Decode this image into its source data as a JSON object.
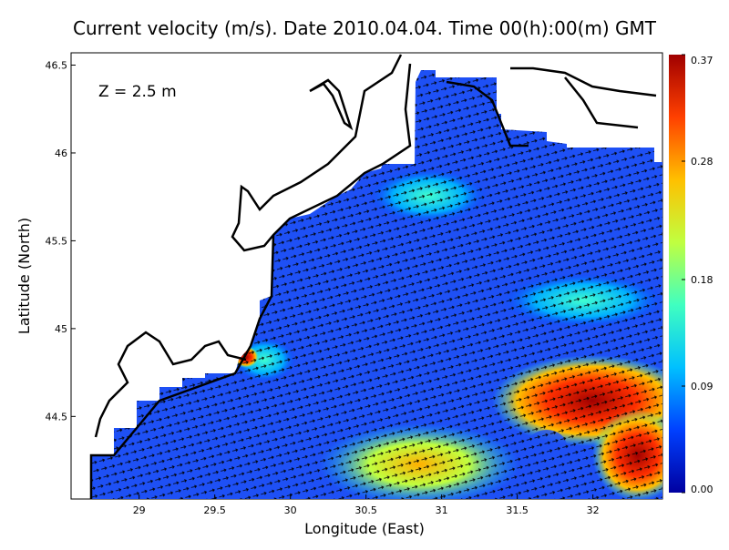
{
  "chart_data": {
    "type": "quiver",
    "title": "Current velocity (m/s). Date 2010.04.04. Time 00(h):00(m) GMT",
    "x_label": "Longitude (East)",
    "y_label": "Latitude (North)",
    "annotation": "Z = 2.5 m",
    "xlim": [
      28.55,
      32.46
    ],
    "ylim": [
      44.03,
      46.57
    ],
    "xticks": [
      29,
      29.5,
      30,
      30.5,
      31,
      31.5,
      32
    ],
    "yticks": [
      44.5,
      45,
      45.5,
      46,
      46.5
    ],
    "colorbar": {
      "lim": [
        0,
        0.37
      ],
      "ticks": [
        {
          "value": 0,
          "label": "0.00"
        },
        {
          "value": 0.09,
          "label": "0.09"
        },
        {
          "value": 0.18,
          "label": "0.18"
        },
        {
          "value": 0.28,
          "label": "0.28"
        },
        {
          "value": 0.37,
          "label": "0.37"
        }
      ],
      "colors": [
        "#0000a0",
        "#0040ff",
        "#00c0ff",
        "#40ffc0",
        "#c0ff40",
        "#ffc000",
        "#ff4000",
        "#a00000"
      ]
    }
  }
}
